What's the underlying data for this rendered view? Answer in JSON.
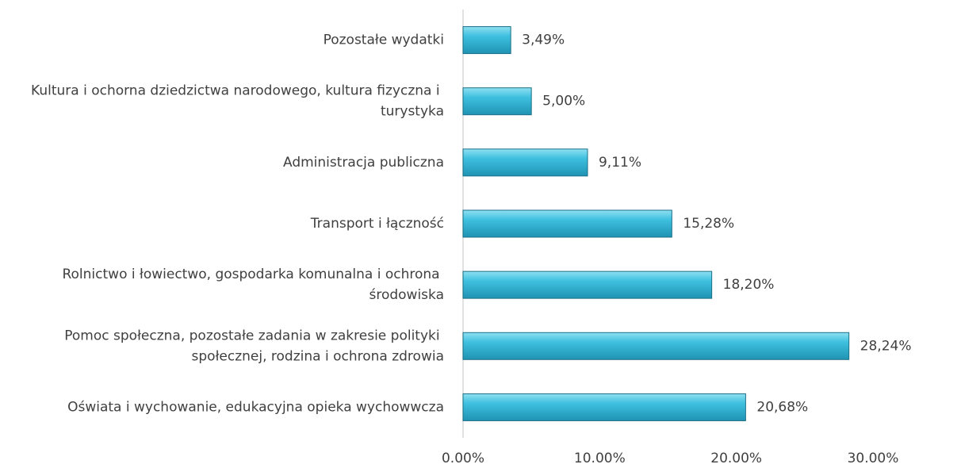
{
  "chart_data": {
    "type": "barh",
    "categories": [
      "Pozostałe wydatki",
      "Kultura i ochorna dziedzictwa narodowego, kultura fizyczna i turystyka",
      "Administracja publiczna",
      "Transport i łączność",
      "Rolnictwo i łowiectwo, gospodarka komunalna i ochrona środowiska",
      "Pomoc społeczna, pozostałe zadania w zakresie polityki społecznej, rodzina i ochrona zdrowia",
      "Oświata i wychowanie, edukacyjna opieka wychowwcza"
    ],
    "values": [
      3.49,
      5.0,
      9.11,
      15.28,
      18.2,
      28.24,
      20.68
    ],
    "value_labels": [
      "3,49%",
      "5,00%",
      "9,11%",
      "15,28%",
      "18,20%",
      "28,24%",
      "20,68%"
    ],
    "color": "#33b5d6",
    "xlim": [
      0,
      30
    ],
    "xticks": [
      {
        "value": 0,
        "label": "0.00%"
      },
      {
        "value": 10,
        "label": "10.00%"
      },
      {
        "value": 20,
        "label": "20.00%"
      },
      {
        "value": 30,
        "label": "30.00%"
      }
    ],
    "grid": false
  }
}
